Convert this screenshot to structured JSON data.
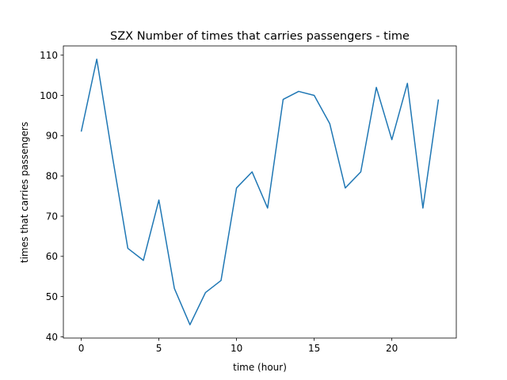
{
  "chart_data": {
    "type": "line",
    "title": "SZX Number of times that carries passengers - time",
    "xlabel": "time (hour)",
    "ylabel": "times that carries passengers",
    "xlim": [
      -1.15,
      24.15
    ],
    "ylim": [
      39.7,
      112.3
    ],
    "xticks": [
      0,
      5,
      10,
      15,
      20
    ],
    "yticks": [
      40,
      50,
      60,
      70,
      80,
      90,
      100,
      110
    ],
    "grid": false,
    "series": [
      {
        "color": "#1f77b4",
        "x": [
          0,
          1,
          2,
          3,
          4,
          5,
          6,
          7,
          8,
          9,
          10,
          11,
          12,
          13,
          14,
          15,
          16,
          17,
          18,
          19,
          20,
          21,
          22,
          23
        ],
        "values": [
          91,
          109,
          85,
          62,
          59,
          74,
          52,
          43,
          51,
          54,
          77,
          81,
          72,
          99,
          101,
          100,
          93,
          77,
          81,
          102,
          89,
          103,
          72,
          99
        ]
      }
    ]
  }
}
